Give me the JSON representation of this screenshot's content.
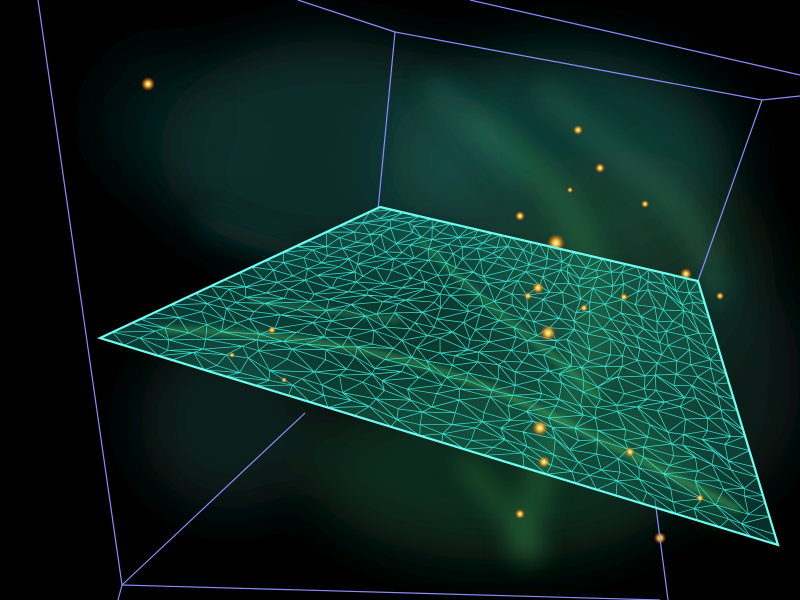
{
  "scene": {
    "colors": {
      "background": "#000000",
      "box_edges": "#8c8cff",
      "wireframe": "#40ffe8",
      "nebula_teal": "#1f6f6a",
      "nebula_green": "#3fae4a",
      "hotspot_orange": "#ff8a20",
      "hotspot_yellow": "#fff27a"
    },
    "elements": {
      "bounding_box": "wireframe-bounding-box",
      "slice_plane": "triangulated-slice-plane",
      "volume": "gas-density-volume"
    }
  }
}
